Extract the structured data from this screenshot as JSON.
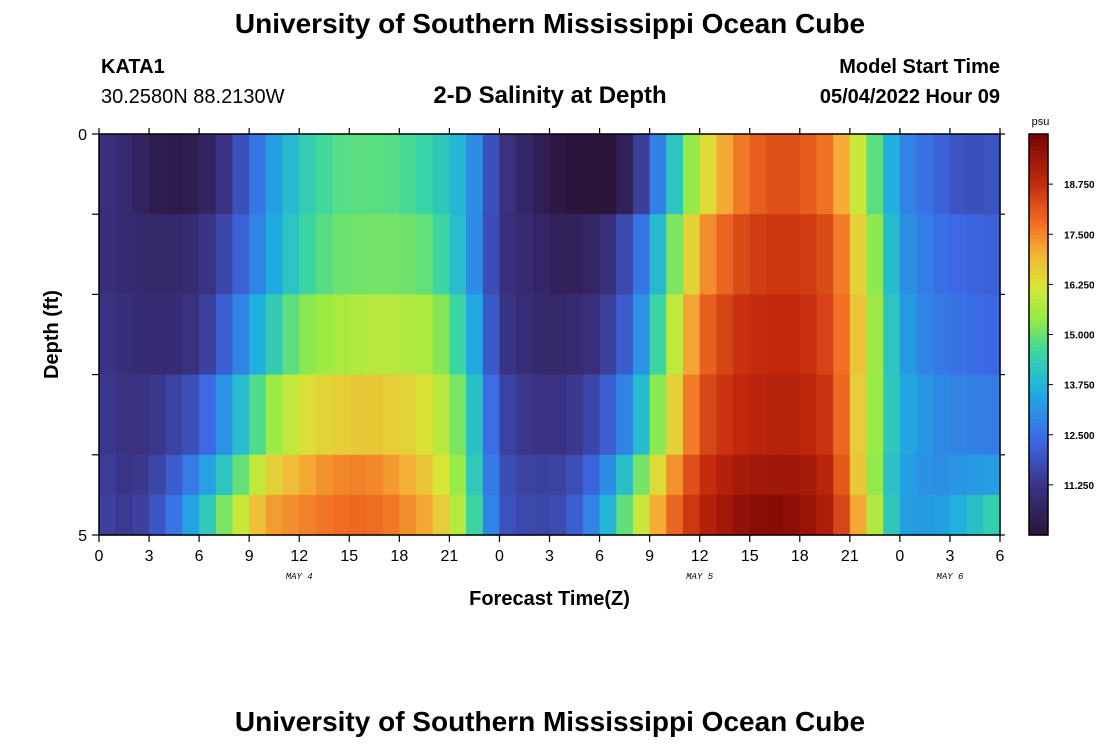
{
  "header": {
    "title": "University of Southern Mississippi Ocean Cube",
    "station": "KATA1",
    "coords": "30.2580N  88.2130W",
    "subtitle": "2-D Salinity at Depth",
    "start_label": "Model Start Time",
    "start_value": "05/04/2022 Hour 09"
  },
  "footer": {
    "title": "University of Southern Mississippi Ocean Cube"
  },
  "chart_data": {
    "type": "heatmap",
    "xlabel": "Forecast Time(Z)",
    "ylabel": "Depth (ft)",
    "x_tick_labels": [
      "0",
      "3",
      "6",
      "9",
      "12",
      "15",
      "18",
      "21",
      "0",
      "3",
      "6",
      "9",
      "12",
      "15",
      "18",
      "21",
      "0",
      "3",
      "6"
    ],
    "date_labels": [
      {
        "label": "MAY 4",
        "hour": 12
      },
      {
        "label": "MAY 5",
        "hour": 36
      },
      {
        "label": "MAY 6",
        "hour": 51
      }
    ],
    "x_range_hours": [
      0,
      54
    ],
    "y_tick_labels": [
      "0",
      "5"
    ],
    "y_range": [
      0,
      5
    ],
    "colorbar": {
      "unit": "psu",
      "min": 10.0,
      "max": 20.0,
      "ticks": [
        "11.250",
        "12.500",
        "13.750",
        "15.000",
        "16.250",
        "17.500",
        "18.750"
      ]
    },
    "depth_rows": [
      0,
      1,
      2,
      3,
      4,
      4.5
    ],
    "time_keys": [
      0,
      2,
      4,
      6,
      8,
      10,
      12,
      14,
      16,
      18,
      20,
      22,
      24,
      26,
      28,
      30,
      32,
      34,
      36,
      38,
      40,
      42,
      44,
      46,
      48,
      50,
      52,
      54
    ],
    "salinity_psu": [
      [
        11.2,
        10.8,
        10.2,
        10.4,
        11.5,
        13.0,
        14.2,
        14.8,
        14.9,
        14.8,
        14.4,
        13.6,
        11.3,
        10.6,
        10.0,
        9.7,
        10.8,
        13.5,
        16.0,
        17.5,
        18.2,
        18.2,
        17.6,
        15.5,
        13.0,
        12.4,
        11.8,
        12.0
      ],
      [
        11.1,
        10.9,
        10.8,
        11.0,
        11.9,
        13.2,
        14.4,
        15.0,
        15.1,
        15.1,
        14.9,
        13.6,
        11.2,
        10.8,
        10.5,
        10.8,
        12.0,
        14.5,
        17.2,
        18.2,
        18.6,
        18.6,
        18.2,
        16.0,
        13.2,
        12.6,
        12.3,
        12.2
      ],
      [
        11.3,
        11.0,
        10.9,
        11.2,
        12.5,
        14.0,
        15.2,
        15.6,
        15.8,
        15.8,
        15.6,
        14.2,
        11.3,
        10.9,
        10.8,
        11.2,
        12.4,
        15.3,
        17.8,
        18.6,
        18.8,
        18.8,
        18.3,
        16.2,
        13.4,
        12.7,
        12.5,
        12.3
      ],
      [
        11.4,
        11.1,
        11.4,
        12.0,
        13.5,
        15.2,
        16.2,
        16.6,
        16.7,
        16.6,
        16.2,
        14.8,
        11.7,
        11.2,
        11.2,
        11.8,
        13.2,
        16.0,
        18.2,
        18.8,
        19.0,
        19.0,
        18.5,
        16.0,
        13.6,
        13.0,
        12.8,
        12.7
      ],
      [
        11.5,
        11.2,
        11.8,
        13.0,
        14.5,
        16.4,
        17.0,
        17.5,
        17.6,
        17.2,
        16.6,
        15.0,
        11.9,
        11.5,
        11.6,
        12.5,
        14.5,
        17.0,
        18.6,
        19.2,
        19.4,
        19.4,
        18.8,
        16.0,
        13.4,
        13.0,
        13.2,
        13.4
      ],
      [
        11.6,
        11.3,
        12.2,
        13.8,
        15.6,
        17.2,
        17.5,
        17.8,
        17.9,
        17.6,
        17.0,
        15.4,
        12.0,
        11.6,
        11.8,
        13.2,
        15.5,
        17.6,
        18.9,
        19.5,
        19.8,
        19.6,
        19.0,
        16.5,
        13.4,
        13.2,
        13.8,
        14.6
      ]
    ]
  }
}
